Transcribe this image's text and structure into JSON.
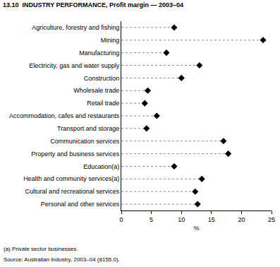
{
  "chart_data": {
    "type": "dot",
    "title": "13.10  INDUSTRY PERFORMANCE, Profit margin — 2003–04",
    "orientation": "horizontal",
    "categories": [
      "Agriculture, forestry and fishing",
      "Mining",
      "Manufacturing",
      "Electricity, gas and water supply",
      "Construction",
      "Wholesale trade",
      "Retail trade",
      "Accommodation, cafes and restaurants",
      "Transport and storage",
      "Communication services",
      "Property and business services",
      "Education(a)",
      "Health and community services(a)",
      "Cultural and recreational services",
      "Personal and other services"
    ],
    "values": [
      8.8,
      23.6,
      7.5,
      13.0,
      10.0,
      4.4,
      3.9,
      5.9,
      4.2,
      17.0,
      17.8,
      8.8,
      13.4,
      12.3,
      12.7
    ],
    "color": "#000000",
    "marker": "diamond",
    "line_style": "dash",
    "x_label": "%",
    "xlim": [
      0,
      25
    ],
    "xticks": [
      0,
      5,
      10,
      15,
      20,
      25
    ],
    "grid": false,
    "annotations": [
      "(a) Private sector businesses.",
      "Source: Australian Industry, 2003–04 (8155.0)."
    ]
  }
}
